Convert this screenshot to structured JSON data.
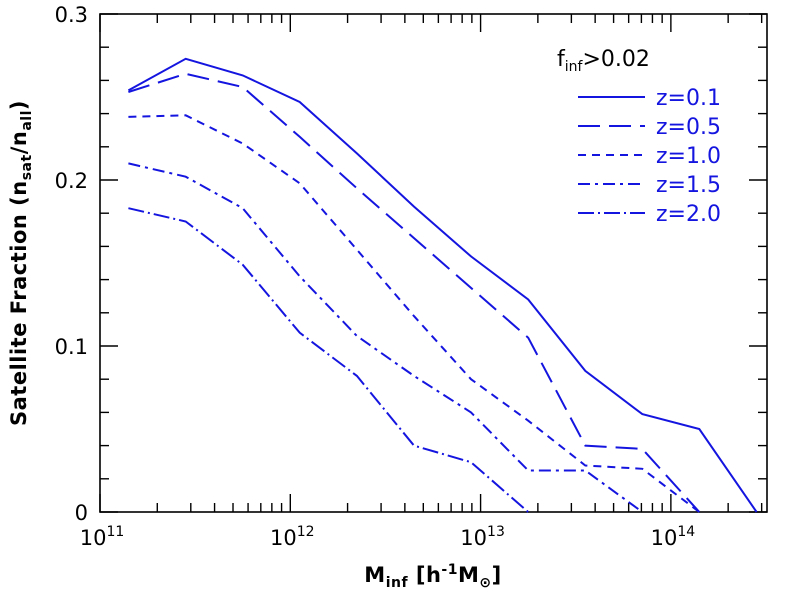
{
  "chart_data": {
    "type": "line",
    "title": "",
    "xlabel": {
      "main": "M",
      "sub": "inf",
      "unit_open": " [h",
      "unit_sup": "-1",
      "unit_m": "M",
      "unit_sub": "⊙",
      "unit_close": "]"
    },
    "ylabel": {
      "main": "Satellite Fraction (n",
      "sub1": "sat",
      "mid": "/n",
      "sub2": "all",
      "close": ")"
    },
    "x_scale": "log",
    "xlim": [
      100000000000.0,
      320000000000000.0
    ],
    "ylim": [
      0,
      0.3
    ],
    "x_ticks": [
      {
        "value": 100000000000.0,
        "base": "10",
        "exp": "11"
      },
      {
        "value": 1000000000000.0,
        "base": "10",
        "exp": "12"
      },
      {
        "value": 10000000000000.0,
        "base": "10",
        "exp": "13"
      },
      {
        "value": 100000000000000.0,
        "base": "10",
        "exp": "14"
      }
    ],
    "y_ticks": [
      {
        "value": 0,
        "label": "0"
      },
      {
        "value": 0.1,
        "label": "0.1"
      },
      {
        "value": 0.2,
        "label": "0.2"
      },
      {
        "value": 0.3,
        "label": "0.3"
      }
    ],
    "grid": false,
    "legend": {
      "placement": "top-right",
      "title_main": "f",
      "title_sub": "inf",
      "title_rest": ">0.02"
    },
    "line_color": "#1515e0",
    "series": [
      {
        "name": "z=0.1",
        "dash": "solid",
        "points": [
          [
            141000000000.0,
            0.254
          ],
          [
            282000000000.0,
            0.273
          ],
          [
            562000000000.0,
            0.263
          ],
          [
            1120000000000.0,
            0.247
          ],
          [
            2240000000000.0,
            0.216
          ],
          [
            4470000000000.0,
            0.184
          ],
          [
            8910000000000.0,
            0.154
          ],
          [
            17800000000000.0,
            0.128
          ],
          [
            35500000000000.0,
            0.085
          ],
          [
            70800000000000.0,
            0.059
          ],
          [
            141000000000000.0,
            0.05
          ],
          [
            282000000000000.0,
            0.0
          ]
        ]
      },
      {
        "name": "z=0.5",
        "dash": "long",
        "points": [
          [
            141000000000.0,
            0.253
          ],
          [
            282000000000.0,
            0.264
          ],
          [
            562000000000.0,
            0.256
          ],
          [
            1120000000000.0,
            0.226
          ],
          [
            2240000000000.0,
            0.195
          ],
          [
            4470000000000.0,
            0.165
          ],
          [
            8910000000000.0,
            0.135
          ],
          [
            17800000000000.0,
            0.105
          ],
          [
            35500000000000.0,
            0.04
          ],
          [
            70800000000000.0,
            0.038
          ],
          [
            141000000000000.0,
            0.0
          ]
        ]
      },
      {
        "name": "z=1.0",
        "dash": "short",
        "points": [
          [
            141000000000.0,
            0.238
          ],
          [
            282000000000.0,
            0.239
          ],
          [
            562000000000.0,
            0.222
          ],
          [
            1120000000000.0,
            0.198
          ],
          [
            2240000000000.0,
            0.158
          ],
          [
            4470000000000.0,
            0.118
          ],
          [
            8910000000000.0,
            0.08
          ],
          [
            17800000000000.0,
            0.055
          ],
          [
            35500000000000.0,
            0.028
          ],
          [
            70800000000000.0,
            0.026
          ],
          [
            141000000000000.0,
            0.0
          ]
        ]
      },
      {
        "name": "z=1.5",
        "dash": "dotdash",
        "points": [
          [
            141000000000.0,
            0.21
          ],
          [
            282000000000.0,
            0.202
          ],
          [
            562000000000.0,
            0.183
          ],
          [
            1120000000000.0,
            0.142
          ],
          [
            2240000000000.0,
            0.106
          ],
          [
            4470000000000.0,
            0.082
          ],
          [
            8910000000000.0,
            0.06
          ],
          [
            17800000000000.0,
            0.025
          ],
          [
            35500000000000.0,
            0.025
          ],
          [
            70800000000000.0,
            0.0
          ]
        ]
      },
      {
        "name": "z=2.0",
        "dash": "dotlongdash",
        "points": [
          [
            141000000000.0,
            0.183
          ],
          [
            282000000000.0,
            0.175
          ],
          [
            562000000000.0,
            0.149
          ],
          [
            1120000000000.0,
            0.108
          ],
          [
            2240000000000.0,
            0.082
          ],
          [
            4470000000000.0,
            0.04
          ],
          [
            8910000000000.0,
            0.03
          ],
          [
            17800000000000.0,
            0.0
          ]
        ]
      }
    ]
  }
}
